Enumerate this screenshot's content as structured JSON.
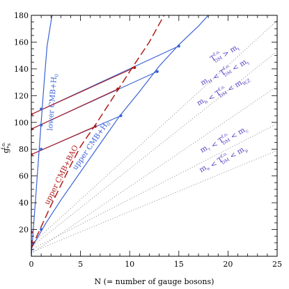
{
  "chart_data": {
    "type": "line",
    "xlabel": "N (= number of gauge bosons)",
    "ylabel": "g",
    "ylabel_sub": "*s",
    "ylabel_sup": "f.o.",
    "xlim": [
      0,
      25
    ],
    "ylim": [
      0,
      180
    ],
    "xticks": [
      0,
      5,
      10,
      15,
      20,
      25
    ],
    "yticks": [
      20,
      40,
      60,
      80,
      100,
      120,
      140,
      160,
      180
    ],
    "grid": false,
    "colors": {
      "blue": "#3a62d4",
      "red": "#b01a1a",
      "purple": "#5a3fc0",
      "gray": "#9a9a9a"
    },
    "curves": [
      {
        "name": "lower CMB+H",
        "name_sub": "0",
        "color": "#3a62d4",
        "style": "solid",
        "points": [
          [
            0,
            0
          ],
          [
            0.5,
            50
          ],
          [
            1.0,
            100
          ],
          [
            1.3,
            130
          ],
          [
            1.6,
            157
          ],
          [
            2.1,
            180
          ]
        ]
      },
      {
        "name": "upper CMB+H",
        "name_sub": "0",
        "color": "#3a62d4",
        "style": "solid",
        "points": [
          [
            0,
            6
          ],
          [
            1.5,
            25
          ],
          [
            3,
            42
          ],
          [
            5,
            63
          ],
          [
            7,
            84
          ],
          [
            9,
            105
          ],
          [
            11,
            123
          ],
          [
            13,
            142
          ],
          [
            15,
            158
          ],
          [
            17,
            172
          ],
          [
            18,
            180
          ]
        ]
      },
      {
        "name": "upper CMB+BAO",
        "name_sub": "",
        "color": "#b01a1a",
        "style": "dashed",
        "points": [
          [
            0,
            6
          ],
          [
            1,
            22
          ],
          [
            2,
            38
          ],
          [
            3,
            53
          ],
          [
            4,
            68
          ],
          [
            5,
            82
          ],
          [
            6.5,
            98
          ],
          [
            8,
            115
          ],
          [
            10,
            138
          ],
          [
            12,
            160
          ],
          [
            13.5,
            180
          ]
        ]
      }
    ],
    "dotted_lines": [
      {
        "color": "#9a9a9a",
        "points": [
          [
            0,
            2
          ],
          [
            25,
            127
          ]
        ]
      },
      {
        "color": "#9a9a9a",
        "points": [
          [
            0,
            7
          ],
          [
            25,
            153
          ]
        ]
      },
      {
        "color": "#9a9a9a",
        "points": [
          [
            0,
            9
          ],
          [
            25,
            176
          ]
        ]
      },
      {
        "color": "#9a9a9a",
        "points": [
          [
            0,
            3
          ],
          [
            25,
            79
          ]
        ]
      },
      {
        "color": "#9a9a9a",
        "points": [
          [
            0,
            5
          ],
          [
            25,
            99
          ]
        ]
      }
    ],
    "blue_segments": [
      {
        "points": [
          [
            0,
            106
          ],
          [
            15,
            157
          ]
        ]
      },
      {
        "points": [
          [
            0,
            95
          ],
          [
            12.8,
            138
          ]
        ]
      },
      {
        "points": [
          [
            0,
            76
          ],
          [
            9.1,
            105
          ]
        ]
      }
    ],
    "red_segments": [
      {
        "points": [
          [
            0,
            106
          ],
          [
            10.5,
            141
          ]
        ]
      },
      {
        "points": [
          [
            0,
            95
          ],
          [
            8.8,
            125
          ]
        ]
      },
      {
        "points": [
          [
            0,
            76
          ],
          [
            6.5,
            97
          ]
        ]
      }
    ],
    "blue_markers": [
      [
        1,
        110
      ],
      [
        1,
        98
      ],
      [
        1,
        80
      ],
      [
        1,
        20
      ],
      [
        15,
        157
      ],
      [
        12.8,
        138
      ],
      [
        9.1,
        105
      ]
    ],
    "red_markers": [
      [
        0,
        106
      ],
      [
        0,
        95
      ],
      [
        0,
        76
      ],
      [
        0,
        18
      ],
      [
        0,
        11
      ],
      [
        10.5,
        141
      ],
      [
        8.8,
        125
      ],
      [
        6.5,
        97
      ]
    ],
    "region_labels": [
      {
        "parts": [
          [
            "T",
            "f.o.",
            "DM"
          ],
          [
            " > ",
            "",
            ""
          ],
          [
            "m",
            "",
            "t"
          ]
        ]
      },
      {
        "parts": [
          [
            "m",
            "",
            "H"
          ],
          [
            " < ",
            "",
            ""
          ],
          [
            "T",
            "f.o.",
            "DM"
          ],
          [
            " < ",
            "",
            ""
          ],
          [
            "m",
            "",
            "t"
          ]
        ]
      },
      {
        "parts": [
          [
            "m",
            "",
            "b"
          ],
          [
            " < ",
            "",
            ""
          ],
          [
            "T",
            "f.o.",
            "DM"
          ],
          [
            " < ",
            "",
            ""
          ],
          [
            "m",
            "",
            "W,Z"
          ]
        ]
      },
      {
        "parts": [
          [
            "m",
            "",
            "τ"
          ],
          [
            " < ",
            "",
            ""
          ],
          [
            "T",
            "f.o.",
            "DM"
          ],
          [
            " < ",
            "",
            ""
          ],
          [
            "m",
            "",
            "c"
          ]
        ]
      },
      {
        "parts": [
          [
            "m",
            "",
            "e"
          ],
          [
            " < ",
            "",
            ""
          ],
          [
            "T",
            "f.o.",
            "DM"
          ],
          [
            " < ",
            "",
            ""
          ],
          [
            "m",
            "",
            "μ"
          ]
        ]
      }
    ]
  }
}
